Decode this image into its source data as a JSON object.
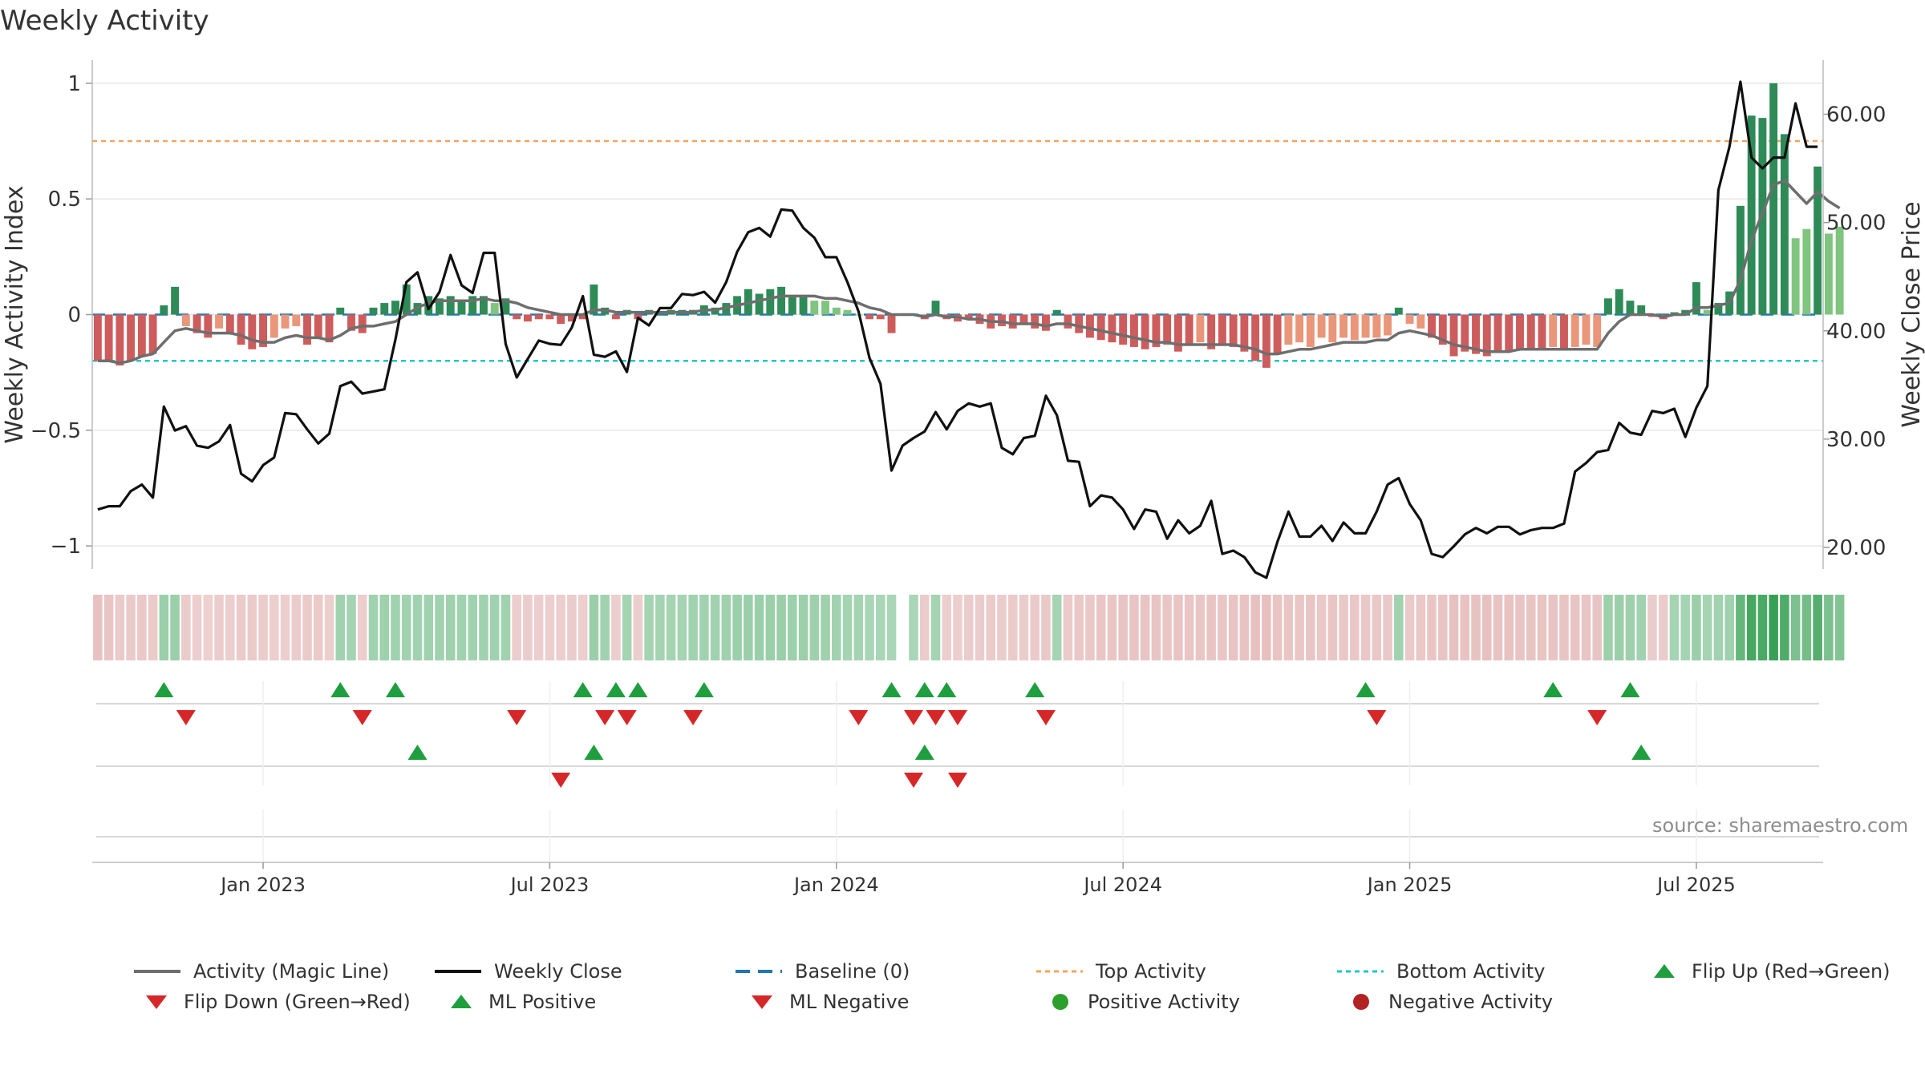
{
  "chart_data": {
    "type": "bar",
    "title": "Weekly Activity",
    "source": "source: sharemaestro.com",
    "y_label": "Weekly Activity Index",
    "y2_label": "Weekly Close Price",
    "ylim": [
      -1.1,
      1.1
    ],
    "y2lim": [
      18.0,
      65.0
    ],
    "y_ticks": [
      1,
      0.5,
      0,
      -0.5,
      -1
    ],
    "y_tick_labels": [
      "1",
      "0.5",
      "0",
      "−0.5",
      "−1"
    ],
    "y2_ticks": [
      60,
      50,
      40,
      30,
      20
    ],
    "y2_tick_labels": [
      "60.00",
      "50.00",
      "40.00",
      "30.00",
      "20.00"
    ],
    "x_tick_labels": [
      "Jan 2023",
      "Jul 2023",
      "Jan 2024",
      "Jul 2024",
      "Jan 2025",
      "Jul 2025"
    ],
    "x_tick_weeks": [
      15,
      41,
      67,
      93,
      119,
      145
    ],
    "num_weeks": 157,
    "top_activity": 0.75,
    "bottom_activity": -0.2,
    "gap_weeks": [
      73
    ],
    "activity": [
      -0.2,
      -0.2,
      -0.22,
      -0.2,
      -0.18,
      -0.17,
      0.04,
      0.12,
      -0.05,
      -0.08,
      -0.1,
      -0.06,
      -0.08,
      -0.13,
      -0.15,
      -0.14,
      -0.1,
      -0.06,
      -0.05,
      -0.13,
      -0.1,
      -0.12,
      0.03,
      -0.07,
      -0.08,
      0.03,
      0.05,
      0.06,
      0.13,
      0.05,
      0.08,
      0.07,
      0.08,
      0.06,
      0.08,
      0.08,
      0.05,
      0.07,
      -0.02,
      -0.03,
      -0.02,
      -0.02,
      -0.04,
      -0.03,
      -0.02,
      0.13,
      0.03,
      -0.02,
      0.02,
      -0.02,
      0.02,
      0.01,
      0.02,
      0.02,
      0.02,
      0.04,
      0.03,
      0.05,
      0.08,
      0.11,
      0.09,
      0.11,
      0.12,
      0.08,
      0.08,
      0.06,
      0.06,
      0.03,
      0.02,
      0.0,
      -0.02,
      -0.02,
      -0.08,
      0.0,
      0.0,
      -0.02,
      0.06,
      -0.02,
      -0.03,
      -0.02,
      -0.04,
      -0.06,
      -0.05,
      -0.06,
      -0.04,
      -0.06,
      -0.07,
      0.02,
      -0.06,
      -0.08,
      -0.1,
      -0.11,
      -0.12,
      -0.13,
      -0.14,
      -0.15,
      -0.14,
      -0.13,
      -0.16,
      -0.13,
      -0.12,
      -0.15,
      -0.13,
      -0.14,
      -0.16,
      -0.2,
      -0.23,
      -0.17,
      -0.13,
      -0.12,
      -0.14,
      -0.1,
      -0.12,
      -0.1,
      -0.11,
      -0.1,
      -0.1,
      -0.09,
      0.03,
      -0.04,
      -0.06,
      -0.1,
      -0.13,
      -0.18,
      -0.16,
      -0.17,
      -0.18,
      -0.16,
      -0.16,
      -0.15,
      -0.15,
      -0.15,
      -0.14,
      -0.15,
      -0.14,
      -0.13,
      -0.14,
      0.07,
      0.11,
      0.06,
      0.04,
      -0.01,
      -0.02,
      0.01,
      0.02,
      0.14,
      0.02,
      0.05,
      0.1,
      0.47,
      0.86,
      0.85,
      1.0,
      0.78,
      0.33,
      0.37,
      0.64,
      0.35,
      0.38
    ],
    "magic_line": [
      -0.2,
      -0.2,
      -0.21,
      -0.2,
      -0.18,
      -0.17,
      -0.12,
      -0.07,
      -0.06,
      -0.07,
      -0.08,
      -0.08,
      -0.08,
      -0.09,
      -0.11,
      -0.12,
      -0.12,
      -0.1,
      -0.09,
      -0.1,
      -0.1,
      -0.11,
      -0.09,
      -0.06,
      -0.05,
      -0.05,
      -0.04,
      -0.03,
      0.0,
      0.03,
      0.05,
      0.06,
      0.06,
      0.06,
      0.06,
      0.07,
      0.06,
      0.06,
      0.05,
      0.03,
      0.02,
      0.01,
      0.0,
      0.0,
      0.0,
      0.02,
      0.02,
      0.01,
      0.01,
      0.01,
      0.01,
      0.01,
      0.01,
      0.01,
      0.01,
      0.02,
      0.02,
      0.03,
      0.04,
      0.05,
      0.06,
      0.07,
      0.08,
      0.08,
      0.08,
      0.08,
      0.07,
      0.07,
      0.06,
      0.05,
      0.03,
      0.02,
      0.0,
      0.0,
      0.0,
      -0.01,
      0.0,
      -0.01,
      -0.01,
      -0.02,
      -0.02,
      -0.03,
      -0.03,
      -0.04,
      -0.04,
      -0.04,
      -0.05,
      -0.04,
      -0.04,
      -0.05,
      -0.06,
      -0.07,
      -0.08,
      -0.09,
      -0.1,
      -0.11,
      -0.12,
      -0.12,
      -0.13,
      -0.13,
      -0.13,
      -0.13,
      -0.13,
      -0.13,
      -0.14,
      -0.15,
      -0.17,
      -0.17,
      -0.16,
      -0.15,
      -0.15,
      -0.14,
      -0.13,
      -0.12,
      -0.12,
      -0.12,
      -0.11,
      -0.11,
      -0.08,
      -0.07,
      -0.08,
      -0.09,
      -0.11,
      -0.13,
      -0.14,
      -0.15,
      -0.16,
      -0.16,
      -0.16,
      -0.15,
      -0.15,
      -0.15,
      -0.15,
      -0.15,
      -0.15,
      -0.15,
      -0.15,
      -0.08,
      -0.03,
      0.0,
      0.0,
      0.0,
      -0.01,
      0.0,
      0.0,
      0.03,
      0.03,
      0.04,
      0.05,
      0.15,
      0.32,
      0.44,
      0.56,
      0.58,
      0.53,
      0.48,
      0.53,
      0.49,
      0.46
    ],
    "weekly_close": [
      23.5,
      23.8,
      23.8,
      25.2,
      25.8,
      24.6,
      33.0,
      30.8,
      31.2,
      29.4,
      29.2,
      29.8,
      31.3,
      26.8,
      26.1,
      27.6,
      28.3,
      32.4,
      32.3,
      30.9,
      29.6,
      30.5,
      34.9,
      35.3,
      34.2,
      34.4,
      34.6,
      39.2,
      44.5,
      45.4,
      42.0,
      43.6,
      47.0,
      44.2,
      43.5,
      47.2,
      47.2,
      38.8,
      35.7,
      37.4,
      39.1,
      38.8,
      38.7,
      40.3,
      43.2,
      37.8,
      37.6,
      38.1,
      36.2,
      41.2,
      40.5,
      42.1,
      42.1,
      43.4,
      43.3,
      43.6,
      42.6,
      44.5,
      47.3,
      49.1,
      49.5,
      48.7,
      51.2,
      51.1,
      49.5,
      48.6,
      46.8,
      46.8,
      44.5,
      41.8,
      37.5,
      35.1,
      27.1,
      29.4,
      30.1,
      30.7,
      32.5,
      30.9,
      32.6,
      33.3,
      33.0,
      33.3,
      29.2,
      28.6,
      30.1,
      30.3,
      34.0,
      32.2,
      28.0,
      27.9,
      23.8,
      24.8,
      24.6,
      23.5,
      21.7,
      23.5,
      23.3,
      20.8,
      22.5,
      21.3,
      22.0,
      24.3,
      19.4,
      19.7,
      19.1,
      17.7,
      17.2,
      20.5,
      23.3,
      21.0,
      21.0,
      22.0,
      20.6,
      22.3,
      21.3,
      21.3,
      23.3,
      25.8,
      26.4,
      24.0,
      22.5,
      19.4,
      19.1,
      20.1,
      21.2,
      21.8,
      21.3,
      21.9,
      21.9,
      21.2,
      21.6,
      21.8,
      21.8,
      22.2,
      27.0,
      27.8,
      28.8,
      29.0,
      31.5,
      30.6,
      30.4,
      32.6,
      32.4,
      32.8,
      30.2,
      32.9,
      34.9,
      53.0,
      57.0,
      63.0,
      56.0,
      55.0,
      56.0,
      56.0,
      61.0,
      57.0,
      57.0
    ],
    "heat_strip": [
      -0.35,
      -0.3,
      -0.25,
      -0.25,
      -0.28,
      -0.25,
      0.35,
      0.35,
      -0.22,
      -0.2,
      -0.18,
      -0.22,
      -0.2,
      -0.25,
      -0.25,
      -0.22,
      -0.2,
      -0.2,
      -0.22,
      -0.25,
      -0.25,
      -0.2,
      0.3,
      0.28,
      -0.2,
      0.3,
      0.32,
      0.3,
      0.3,
      0.3,
      0.3,
      0.3,
      0.32,
      0.3,
      0.3,
      0.3,
      0.3,
      0.3,
      -0.2,
      -0.22,
      -0.2,
      -0.2,
      -0.2,
      -0.22,
      -0.2,
      0.35,
      0.3,
      -0.2,
      0.28,
      -0.2,
      0.28,
      0.28,
      0.28,
      0.28,
      0.3,
      0.3,
      0.3,
      0.32,
      0.34,
      0.35,
      0.35,
      0.35,
      0.35,
      0.34,
      0.34,
      0.33,
      0.32,
      0.3,
      0.28,
      0.28,
      0.25,
      0.25,
      0.25,
      0,
      0.25,
      -0.22,
      0.28,
      -0.2,
      -0.2,
      -0.22,
      -0.22,
      -0.24,
      -0.22,
      -0.24,
      -0.22,
      -0.25,
      -0.26,
      0.28,
      -0.25,
      -0.27,
      -0.28,
      -0.3,
      -0.3,
      -0.32,
      -0.32,
      -0.33,
      -0.32,
      -0.3,
      -0.33,
      -0.3,
      -0.3,
      -0.33,
      -0.3,
      -0.32,
      -0.34,
      -0.36,
      -0.38,
      -0.33,
      -0.3,
      -0.3,
      -0.32,
      -0.28,
      -0.3,
      -0.28,
      -0.29,
      -0.28,
      -0.28,
      -0.27,
      0.3,
      -0.26,
      -0.27,
      -0.3,
      -0.32,
      -0.36,
      -0.34,
      -0.35,
      -0.36,
      -0.34,
      -0.34,
      -0.33,
      -0.33,
      -0.33,
      -0.32,
      -0.33,
      -0.32,
      -0.31,
      -0.32,
      0.33,
      0.35,
      0.33,
      0.3,
      -0.22,
      -0.22,
      0.28,
      0.28,
      0.35,
      0.28,
      0.3,
      0.32,
      0.7,
      0.9,
      0.88,
      1.0,
      0.85,
      0.55,
      0.6,
      0.8,
      0.55,
      0.5
    ],
    "flip_up_weeks": [
      6,
      22,
      27,
      44,
      47,
      49,
      55,
      72,
      75,
      77,
      85,
      115,
      132,
      139
    ],
    "flip_down_weeks": [
      8,
      24,
      38,
      46,
      48,
      54,
      69,
      74,
      76,
      78,
      86,
      116,
      136
    ],
    "ml_positive_weeks": [
      29,
      45,
      75,
      140
    ],
    "ml_negative_weeks": [
      42,
      74,
      78
    ],
    "colors": {
      "strong_green": "#2e8b57",
      "light_green": "#7fc47f",
      "strong_red": "#cd5c5c",
      "light_red": "#e9967a",
      "magic_line": "#6e6e6e",
      "close_line": "#111111",
      "baseline": "#1f77b4",
      "top_line": "#f4a460",
      "bottom_line": "#20c7c7",
      "marker_up": "#1e9e3e",
      "marker_down": "#d62728",
      "dot_positive": "#2ca02c",
      "dot_negative": "#b22222",
      "grid": "#e6e6e6"
    }
  },
  "legend": {
    "items": [
      {
        "key": "magic",
        "label": "Activity (Magic Line)"
      },
      {
        "key": "close",
        "label": "Weekly Close"
      },
      {
        "key": "baseline",
        "label": "Baseline (0)"
      },
      {
        "key": "top",
        "label": "Top Activity"
      },
      {
        "key": "bottom",
        "label": "Bottom Activity"
      },
      {
        "key": "flipup",
        "label": "Flip Up (Red→Green)"
      },
      {
        "key": "flipdown",
        "label": "Flip Down (Green→Red)"
      },
      {
        "key": "mlpos",
        "label": "ML Positive"
      },
      {
        "key": "mlneg",
        "label": "ML Negative"
      },
      {
        "key": "pos",
        "label": "Positive Activity"
      },
      {
        "key": "neg",
        "label": "Negative Activity"
      }
    ]
  }
}
